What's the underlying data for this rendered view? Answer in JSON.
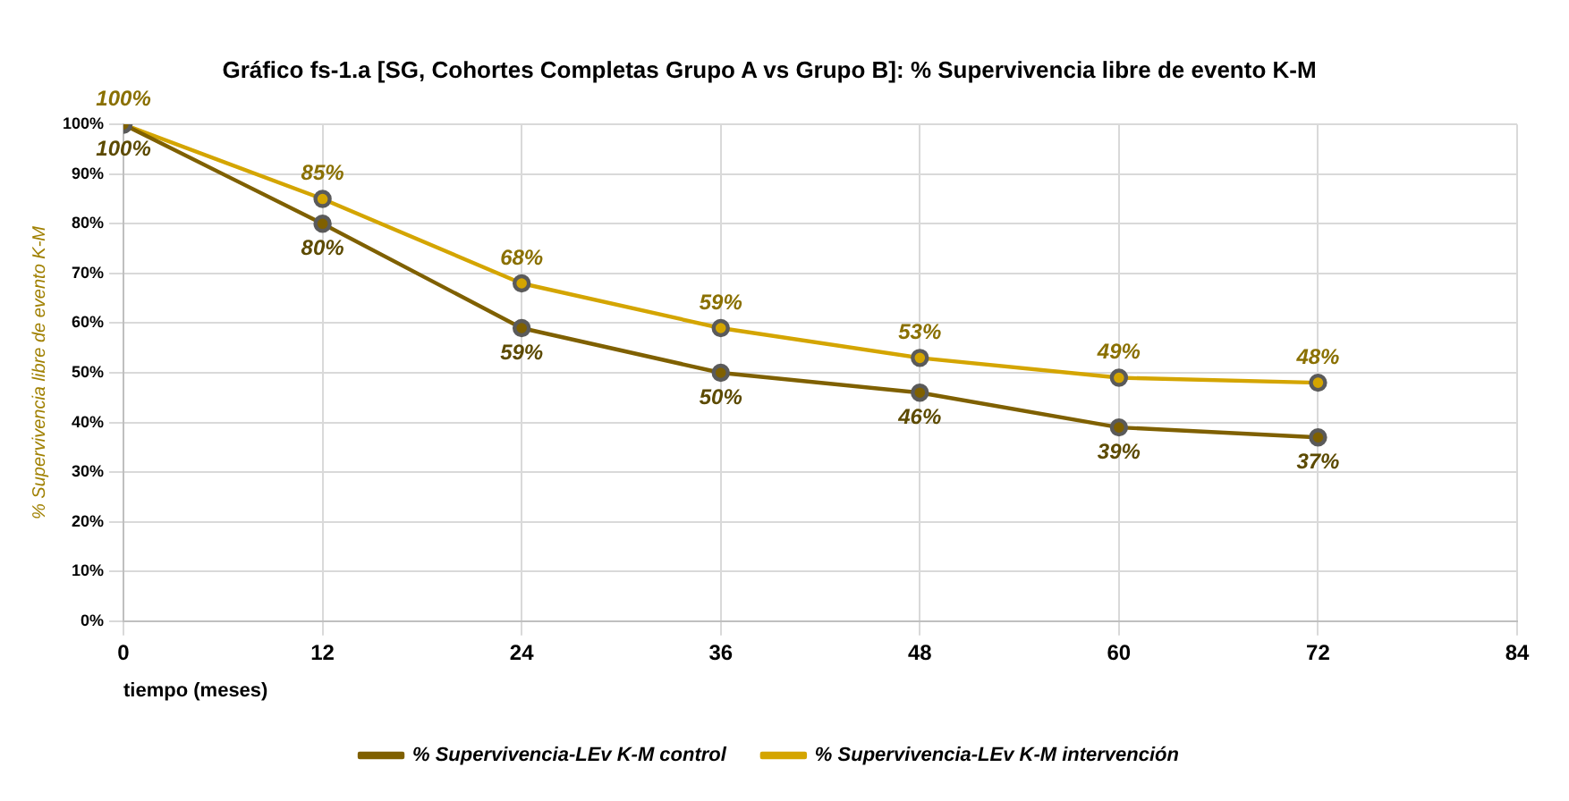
{
  "chart_data": {
    "type": "line",
    "title": "Gráfico fs-1.a [SG, Cohortes Completas Grupo A vs Grupo B]: % Supervivencia libre de evento K-M",
    "xlabel": "tiempo (meses)",
    "ylabel": "% Supervivencia libre de evento K-M",
    "x": [
      0,
      12,
      24,
      36,
      48,
      60,
      72
    ],
    "series": [
      {
        "name": "% Supervivencia-LEv K-M control",
        "color": "#7f6000",
        "values": [
          100,
          80,
          59,
          50,
          46,
          39,
          37
        ],
        "value_labels": [
          "100%",
          "80%",
          "59%",
          "50%",
          "46%",
          "39%",
          "37%"
        ]
      },
      {
        "name": "% Supervivencia-LEv K-M intervención",
        "color": "#d4a500",
        "values": [
          100,
          85,
          68,
          59,
          53,
          49,
          48
        ],
        "value_labels": [
          "100%",
          "85%",
          "68%",
          "59%",
          "53%",
          "49%",
          "48%"
        ]
      }
    ],
    "xlim": [
      0,
      84
    ],
    "xticks": [
      0,
      12,
      24,
      36,
      48,
      60,
      72,
      84
    ],
    "ylim": [
      0,
      100
    ],
    "yticks": [
      {
        "value": 0,
        "label": "0%"
      },
      {
        "value": 10,
        "label": "10%"
      },
      {
        "value": 20,
        "label": "20%"
      },
      {
        "value": 30,
        "label": "30%"
      },
      {
        "value": 40,
        "label": "40%"
      },
      {
        "value": 50,
        "label": "50%"
      },
      {
        "value": 60,
        "label": "60%"
      },
      {
        "value": 70,
        "label": "70%"
      },
      {
        "value": 80,
        "label": "80%"
      },
      {
        "value": 90,
        "label": "90%"
      },
      {
        "value": 100,
        "label": "100%"
      }
    ],
    "grid": true,
    "legend": "bottom",
    "marker": "circle",
    "line_style": "solid"
  }
}
